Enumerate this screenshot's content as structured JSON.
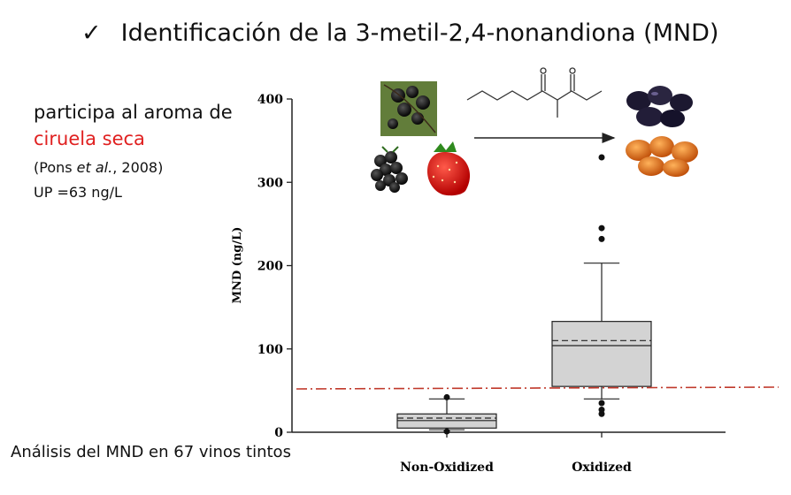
{
  "title": {
    "check": "✓",
    "text": "Identificación de la 3-metil-2,4-nonandiona (MND)"
  },
  "notes": {
    "line1": "participa al aroma de",
    "line2": "ciruela seca",
    "citation_pre": "(Pons ",
    "citation_italic": "et al.",
    "citation_post": ", 2008)",
    "up": "UP =63 ng/L"
  },
  "footnote": "Análisis del MND en 67 vinos tintos",
  "images": [
    {
      "name": "blackcurrant-photo-icon"
    },
    {
      "name": "blackberry-photo-icon"
    },
    {
      "name": "strawberry-photo-icon"
    },
    {
      "name": "molecule-structure-icon"
    },
    {
      "name": "prunes-photo-icon"
    },
    {
      "name": "dried-apricot-photo-icon"
    }
  ],
  "chart_data": {
    "type": "boxplot",
    "ylabel": "MND (ng/L)",
    "ylim": [
      0,
      400
    ],
    "yticks": [
      0,
      100,
      200,
      300,
      400
    ],
    "categories": [
      "Non-Oxidized",
      "Oxidized"
    ],
    "boxes": [
      {
        "category": "Non-Oxidized",
        "whisker_low": 3,
        "q1": 5,
        "median": 14,
        "mean": 17,
        "q3": 22,
        "whisker_high": 40,
        "outliers": [
          1,
          42
        ]
      },
      {
        "category": "Oxidized",
        "whisker_low": 40,
        "q1": 55,
        "median": 104,
        "mean": 110,
        "q3": 133,
        "whisker_high": 203,
        "outliers": [
          22,
          27,
          35,
          232,
          245,
          330
        ]
      }
    ],
    "reference_line": {
      "value": 52,
      "color": "#c0392b",
      "style": "dash-dot"
    },
    "box_fill": "#d3d3d3",
    "annotation_arrow": "fresh fruit → dried fruit"
  }
}
